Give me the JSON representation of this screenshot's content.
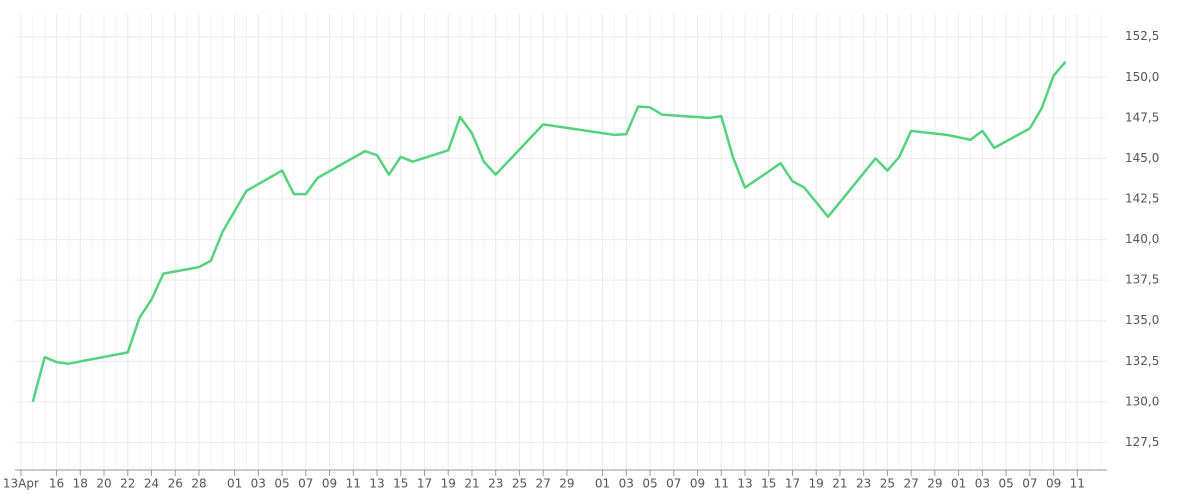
{
  "chart_data": {
    "type": "line",
    "x": [
      1,
      2,
      3,
      4,
      9,
      10,
      11,
      12,
      15,
      16,
      17,
      19,
      22,
      23,
      24,
      25,
      29,
      30,
      31,
      32,
      33,
      36,
      37,
      38,
      39,
      40,
      44,
      50,
      51,
      52,
      53,
      54,
      58,
      59,
      60,
      61,
      64,
      65,
      66,
      68,
      72,
      73,
      74,
      75,
      78,
      80,
      81,
      82,
      85,
      86,
      87,
      88
    ],
    "series": [
      {
        "color": "#55d27f",
        "values": [
          130.0,
          132.75,
          132.45,
          132.35,
          133.05,
          135.2,
          136.3,
          137.9,
          138.3,
          138.7,
          140.5,
          143.0,
          144.25,
          142.8,
          142.8,
          143.8,
          145.45,
          145.2,
          144.0,
          145.1,
          144.8,
          145.5,
          147.55,
          146.55,
          144.8,
          144.0,
          147.1,
          146.45,
          146.5,
          148.2,
          148.15,
          147.7,
          147.5,
          147.6,
          145.05,
          143.2,
          144.7,
          143.6,
          143.2,
          141.4,
          145.0,
          144.25,
          145.1,
          146.7,
          146.45,
          146.15,
          146.7,
          145.65,
          146.85,
          148.1,
          150.1,
          150.95
        ]
      }
    ],
    "xlim": [
      -0.5,
      91.5
    ],
    "xticks": [
      {
        "value": 0,
        "label": "13Apr"
      },
      {
        "value": 3,
        "label": "16"
      },
      {
        "value": 5,
        "label": "18"
      },
      {
        "value": 7,
        "label": "20"
      },
      {
        "value": 9,
        "label": "22"
      },
      {
        "value": 11,
        "label": "24"
      },
      {
        "value": 13,
        "label": "26"
      },
      {
        "value": 15,
        "label": "28"
      },
      {
        "value": 18,
        "label": "01"
      },
      {
        "value": 20,
        "label": "03"
      },
      {
        "value": 22,
        "label": "05"
      },
      {
        "value": 24,
        "label": "07"
      },
      {
        "value": 26,
        "label": "09"
      },
      {
        "value": 28,
        "label": "11"
      },
      {
        "value": 30,
        "label": "13"
      },
      {
        "value": 32,
        "label": "15"
      },
      {
        "value": 34,
        "label": "17"
      },
      {
        "value": 36,
        "label": "19"
      },
      {
        "value": 38,
        "label": "21"
      },
      {
        "value": 40,
        "label": "23"
      },
      {
        "value": 42,
        "label": "25"
      },
      {
        "value": 44,
        "label": "27"
      },
      {
        "value": 46,
        "label": "29"
      },
      {
        "value": 49,
        "label": "01"
      },
      {
        "value": 51,
        "label": "03"
      },
      {
        "value": 53,
        "label": "05"
      },
      {
        "value": 55,
        "label": "07"
      },
      {
        "value": 57,
        "label": "09"
      },
      {
        "value": 59,
        "label": "11"
      },
      {
        "value": 61,
        "label": "13"
      },
      {
        "value": 63,
        "label": "15"
      },
      {
        "value": 65,
        "label": "17"
      },
      {
        "value": 67,
        "label": "19"
      },
      {
        "value": 69,
        "label": "21"
      },
      {
        "value": 71,
        "label": "23"
      },
      {
        "value": 73,
        "label": "25"
      },
      {
        "value": 75,
        "label": "27"
      },
      {
        "value": 77,
        "label": "29"
      },
      {
        "value": 79,
        "label": "01"
      },
      {
        "value": 81,
        "label": "03"
      },
      {
        "value": 83,
        "label": "05"
      },
      {
        "value": 85,
        "label": "07"
      },
      {
        "value": 87,
        "label": "09"
      },
      {
        "value": 89,
        "label": "11"
      }
    ],
    "ylim": [
      125.8,
      153.9
    ],
    "yticks": [
      {
        "value": 127.5,
        "label": "127,5"
      },
      {
        "value": 130,
        "label": "130,0"
      },
      {
        "value": 132.5,
        "label": "132,5"
      },
      {
        "value": 135,
        "label": "135,0"
      },
      {
        "value": 137.5,
        "label": "137,5"
      },
      {
        "value": 140,
        "label": "140,0"
      },
      {
        "value": 142.5,
        "label": "142,5"
      },
      {
        "value": 145,
        "label": "145,0"
      },
      {
        "value": 147.5,
        "label": "147,5"
      },
      {
        "value": 150,
        "label": "150,0"
      },
      {
        "value": 152.5,
        "label": "152,5"
      }
    ],
    "grid": true
  }
}
